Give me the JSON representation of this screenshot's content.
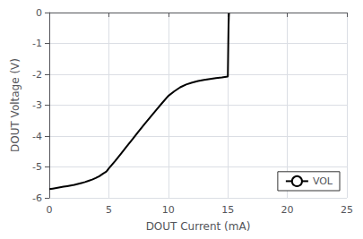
{
  "chart_data": {
    "type": "line",
    "xlabel": "DOUT Current (mA)",
    "ylabel": "DOUT Voltage (V)",
    "x": [
      0.0,
      0.3,
      0.6,
      0.9,
      1.2,
      1.5,
      1.8,
      2.1,
      2.4,
      2.7,
      3.0,
      3.3,
      3.6,
      3.9,
      4.2,
      4.5,
      4.8,
      5.0,
      5.5,
      6.0,
      6.5,
      7.0,
      7.5,
      8.0,
      8.5,
      9.0,
      9.5,
      10.0,
      10.5,
      11.0,
      11.5,
      12.0,
      12.5,
      13.0,
      13.5,
      14.0,
      14.5,
      15.0,
      15.02,
      15.04,
      15.06,
      15.08,
      15.1
    ],
    "series": [
      {
        "name": "VOL",
        "color": "#000000",
        "values": [
          -5.72,
          -5.7,
          -5.68,
          -5.66,
          -5.64,
          -5.62,
          -5.6,
          -5.58,
          -5.55,
          -5.52,
          -5.49,
          -5.45,
          -5.41,
          -5.36,
          -5.3,
          -5.22,
          -5.15,
          -5.05,
          -4.82,
          -4.58,
          -4.34,
          -4.1,
          -3.85,
          -3.61,
          -3.38,
          -3.15,
          -2.92,
          -2.7,
          -2.55,
          -2.42,
          -2.33,
          -2.27,
          -2.22,
          -2.18,
          -2.15,
          -2.12,
          -2.1,
          -2.07,
          -1.5,
          -0.9,
          -0.4,
          -0.15,
          -0.02
        ]
      }
    ],
    "xlim": [
      0,
      25
    ],
    "ylim": [
      -6,
      0
    ],
    "xticks": [
      0,
      5,
      10,
      15,
      20,
      25
    ],
    "yticks": [
      0,
      -1,
      -2,
      -3,
      -4,
      -5,
      -6
    ],
    "grid": true,
    "legend": "lower right"
  }
}
